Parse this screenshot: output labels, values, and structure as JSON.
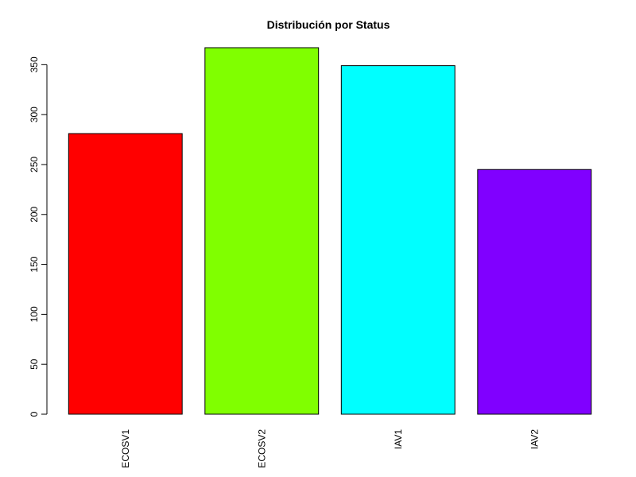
{
  "chart_data": {
    "type": "bar",
    "title": "Distribución por Status",
    "xlabel": "",
    "ylabel": "",
    "categories": [
      "ECOSV1",
      "ECOSV2",
      "IAV1",
      "IAV2"
    ],
    "values": [
      281,
      367,
      349,
      245
    ],
    "colors": [
      "#FF0000",
      "#80FF00",
      "#00FFFF",
      "#8000FF"
    ],
    "ylim": [
      0,
      367
    ],
    "yticks": [
      0,
      50,
      100,
      150,
      200,
      250,
      300,
      350
    ],
    "grid": false,
    "legend": "none"
  }
}
